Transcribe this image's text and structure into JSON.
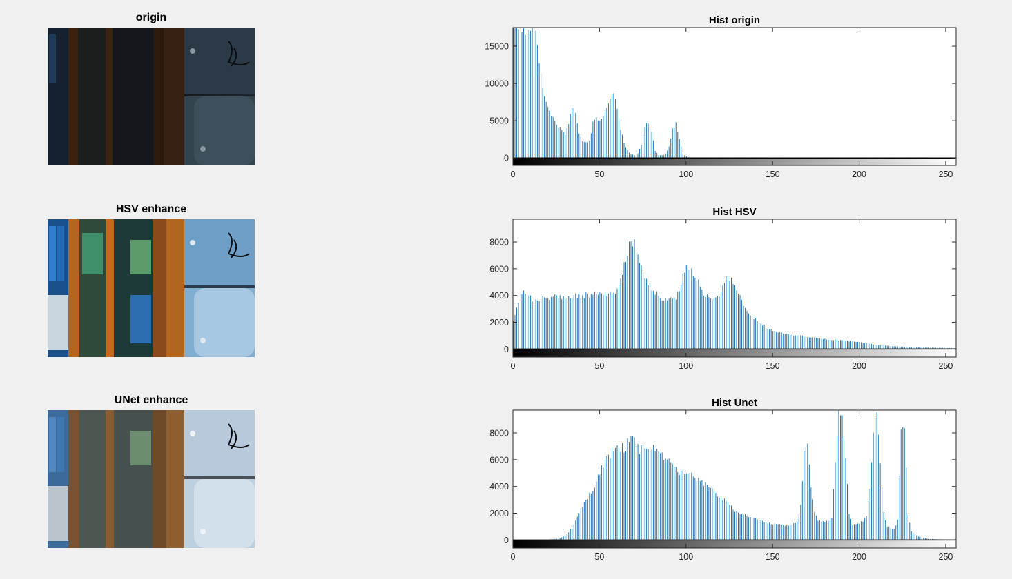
{
  "images": [
    {
      "title": "origin"
    },
    {
      "title": "HSV enhance"
    },
    {
      "title": "UNet enhance"
    }
  ],
  "colors": {
    "bar": "#1f77b4",
    "background": "#f0f0f0",
    "axes": "#ffffff"
  },
  "chart_data": [
    {
      "type": "bar",
      "title": "Hist origin",
      "xlim": [
        0,
        256
      ],
      "ylim": [
        -1000,
        17500
      ],
      "xticks": [
        0,
        50,
        100,
        150,
        200,
        250
      ],
      "yticks": [
        0,
        5000,
        10000,
        15000
      ],
      "colorbar": "grayscale",
      "profile": [
        [
          0,
          17500
        ],
        [
          12,
          17500
        ],
        [
          14,
          15000
        ],
        [
          16,
          11000
        ],
        [
          18,
          8500
        ],
        [
          20,
          6500
        ],
        [
          24,
          5000
        ],
        [
          28,
          3600
        ],
        [
          30,
          3000
        ],
        [
          32,
          4800
        ],
        [
          34,
          7000
        ],
        [
          36,
          5800
        ],
        [
          38,
          3200
        ],
        [
          40,
          2300
        ],
        [
          42,
          2000
        ],
        [
          44,
          2400
        ],
        [
          46,
          4600
        ],
        [
          48,
          5600
        ],
        [
          50,
          5000
        ],
        [
          52,
          5800
        ],
        [
          54,
          6800
        ],
        [
          56,
          7800
        ],
        [
          58,
          9000
        ],
        [
          60,
          7000
        ],
        [
          62,
          4000
        ],
        [
          64,
          2000
        ],
        [
          66,
          1000
        ],
        [
          68,
          500
        ],
        [
          70,
          400
        ],
        [
          72,
          600
        ],
        [
          74,
          1800
        ],
        [
          76,
          4300
        ],
        [
          78,
          4800
        ],
        [
          80,
          3500
        ],
        [
          82,
          1000
        ],
        [
          84,
          400
        ],
        [
          86,
          350
        ],
        [
          88,
          500
        ],
        [
          90,
          1500
        ],
        [
          92,
          3800
        ],
        [
          94,
          4600
        ],
        [
          96,
          2500
        ],
        [
          98,
          600
        ],
        [
          100,
          200
        ],
        [
          102,
          50
        ],
        [
          104,
          0
        ],
        [
          256,
          0
        ]
      ]
    },
    {
      "type": "bar",
      "title": "Hist HSV",
      "xlim": [
        0,
        256
      ],
      "ylim": [
        -600,
        9700
      ],
      "xticks": [
        0,
        50,
        100,
        150,
        200,
        250
      ],
      "yticks": [
        0,
        2000,
        4000,
        6000,
        8000
      ],
      "colorbar": "grayscale",
      "profile": [
        [
          0,
          2000
        ],
        [
          2,
          3200
        ],
        [
          4,
          3500
        ],
        [
          6,
          4300
        ],
        [
          8,
          4400
        ],
        [
          10,
          3900
        ],
        [
          12,
          3500
        ],
        [
          14,
          3800
        ],
        [
          20,
          3850
        ],
        [
          30,
          3900
        ],
        [
          40,
          4000
        ],
        [
          50,
          4100
        ],
        [
          58,
          4200
        ],
        [
          60,
          4300
        ],
        [
          62,
          5000
        ],
        [
          64,
          6200
        ],
        [
          66,
          7400
        ],
        [
          68,
          8000
        ],
        [
          70,
          7800
        ],
        [
          72,
          7000
        ],
        [
          74,
          6000
        ],
        [
          76,
          5300
        ],
        [
          78,
          4800
        ],
        [
          82,
          4300
        ],
        [
          86,
          3800
        ],
        [
          90,
          3700
        ],
        [
          94,
          3900
        ],
        [
          96,
          4500
        ],
        [
          98,
          5500
        ],
        [
          100,
          6200
        ],
        [
          102,
          6100
        ],
        [
          104,
          5600
        ],
        [
          106,
          5200
        ],
        [
          108,
          4900
        ],
        [
          110,
          4200
        ],
        [
          114,
          3800
        ],
        [
          118,
          3800
        ],
        [
          120,
          4300
        ],
        [
          122,
          5000
        ],
        [
          124,
          5300
        ],
        [
          126,
          5100
        ],
        [
          128,
          4700
        ],
        [
          130,
          4200
        ],
        [
          132,
          3500
        ],
        [
          136,
          2800
        ],
        [
          140,
          2200
        ],
        [
          144,
          1800
        ],
        [
          148,
          1500
        ],
        [
          152,
          1300
        ],
        [
          160,
          1100
        ],
        [
          170,
          900
        ],
        [
          180,
          750
        ],
        [
          190,
          650
        ],
        [
          200,
          500
        ],
        [
          210,
          300
        ],
        [
          220,
          200
        ],
        [
          230,
          120
        ],
        [
          240,
          100
        ],
        [
          250,
          80
        ],
        [
          256,
          60
        ]
      ]
    },
    {
      "type": "bar",
      "title": "Hist Unet",
      "xlim": [
        0,
        256
      ],
      "ylim": [
        -600,
        9700
      ],
      "xticks": [
        0,
        50,
        100,
        150,
        200,
        250
      ],
      "yticks": [
        0,
        2000,
        4000,
        6000,
        8000
      ],
      "colorbar": "grayscale",
      "profile": [
        [
          0,
          20
        ],
        [
          20,
          40
        ],
        [
          26,
          100
        ],
        [
          30,
          300
        ],
        [
          34,
          900
        ],
        [
          36,
          1500
        ],
        [
          38,
          2100
        ],
        [
          40,
          2500
        ],
        [
          42,
          3000
        ],
        [
          44,
          3400
        ],
        [
          46,
          3700
        ],
        [
          48,
          4300
        ],
        [
          50,
          5000
        ],
        [
          52,
          5600
        ],
        [
          54,
          6100
        ],
        [
          56,
          6400
        ],
        [
          60,
          6700
        ],
        [
          64,
          6900
        ],
        [
          68,
          7500
        ],
        [
          70,
          7300
        ],
        [
          72,
          6800
        ],
        [
          76,
          6700
        ],
        [
          80,
          6800
        ],
        [
          84,
          6600
        ],
        [
          88,
          6200
        ],
        [
          90,
          5800
        ],
        [
          94,
          5200
        ],
        [
          100,
          5000
        ],
        [
          104,
          4700
        ],
        [
          108,
          4300
        ],
        [
          112,
          4000
        ],
        [
          116,
          3600
        ],
        [
          120,
          3200
        ],
        [
          124,
          2700
        ],
        [
          128,
          2200
        ],
        [
          132,
          1900
        ],
        [
          136,
          1800
        ],
        [
          140,
          1600
        ],
        [
          144,
          1400
        ],
        [
          150,
          1200
        ],
        [
          156,
          1100
        ],
        [
          160,
          1100
        ],
        [
          164,
          1300
        ],
        [
          166,
          2500
        ],
        [
          168,
          6500
        ],
        [
          170,
          7000
        ],
        [
          172,
          4000
        ],
        [
          174,
          2000
        ],
        [
          176,
          1500
        ],
        [
          180,
          1300
        ],
        [
          184,
          1600
        ],
        [
          186,
          6000
        ],
        [
          188,
          9700
        ],
        [
          190,
          9700
        ],
        [
          192,
          6000
        ],
        [
          194,
          2000
        ],
        [
          196,
          1100
        ],
        [
          200,
          1200
        ],
        [
          204,
          1700
        ],
        [
          206,
          4000
        ],
        [
          208,
          8200
        ],
        [
          210,
          9700
        ],
        [
          212,
          6000
        ],
        [
          214,
          2000
        ],
        [
          216,
          1000
        ],
        [
          220,
          800
        ],
        [
          222,
          1500
        ],
        [
          224,
          8700
        ],
        [
          226,
          8400
        ],
        [
          228,
          2000
        ],
        [
          230,
          600
        ],
        [
          234,
          250
        ],
        [
          240,
          80
        ],
        [
          250,
          30
        ],
        [
          256,
          20
        ]
      ]
    }
  ]
}
